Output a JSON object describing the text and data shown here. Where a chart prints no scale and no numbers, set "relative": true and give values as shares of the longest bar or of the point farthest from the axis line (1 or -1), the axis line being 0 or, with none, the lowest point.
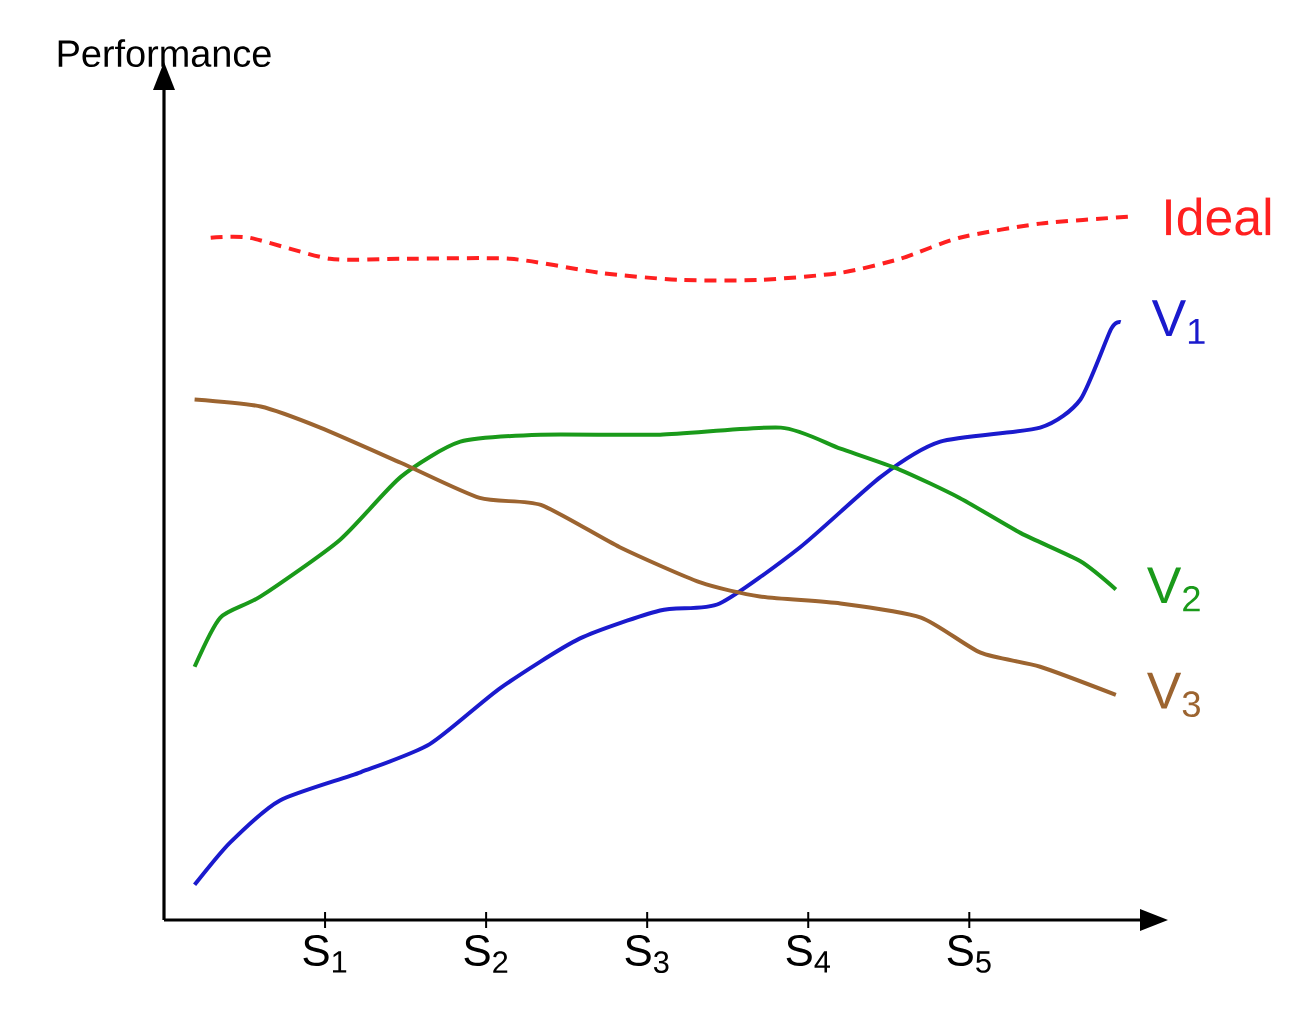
{
  "chart_data": {
    "type": "line",
    "relative": true,
    "ylabel": "Performance",
    "marker": "none",
    "legend": false,
    "grid": false,
    "xlim": [
      0,
      6.06
    ],
    "xticks": [
      {
        "value": 1,
        "label": "S$_{1}$"
      },
      {
        "value": 2,
        "label": "S$_{2}$"
      },
      {
        "value": 3,
        "label": "S$_{3}$"
      },
      {
        "value": 4,
        "label": "S$_{4}$"
      },
      {
        "value": 5,
        "label": "S$_{5}$"
      }
    ],
    "series": [
      {
        "name": "Ideal",
        "color": "#ff2020",
        "line_style": "dashed",
        "x": [
          0.29,
          0.53,
          1.03,
          1.47,
          2.15,
          2.71,
          3.2,
          3.7,
          4.2,
          4.57,
          4.94,
          5.44,
          6.0
        ],
        "values": [
          0.97,
          0.97,
          0.94,
          0.94,
          0.94,
          0.92,
          0.91,
          0.91,
          0.92,
          0.94,
          0.97,
          0.99,
          1
        ]
      },
      {
        "name": "V$_{1}$",
        "color": "#1a1acd",
        "line_style": "solid",
        "x": [
          0.19,
          0.41,
          0.72,
          1.22,
          1.65,
          2.09,
          2.58,
          3.08,
          3.45,
          3.95,
          4.45,
          4.82,
          5.44,
          5.69,
          5.88,
          5.94
        ],
        "values": [
          0.05,
          0.11,
          0.17,
          0.21,
          0.25,
          0.33,
          0.4,
          0.44,
          0.45,
          0.53,
          0.63,
          0.68,
          0.7,
          0.74,
          0.84,
          0.85
        ]
      },
      {
        "name": "V$_{2}$",
        "color": "#1a9a1a",
        "line_style": "solid",
        "x": [
          0.19,
          0.35,
          0.6,
          1.09,
          1.47,
          1.84,
          2.34,
          3.08,
          3.83,
          4.2,
          4.57,
          4.94,
          5.32,
          5.69,
          5.91
        ],
        "values": [
          0.36,
          0.43,
          0.46,
          0.54,
          0.63,
          0.68,
          0.69,
          0.69,
          0.7,
          0.67,
          0.64,
          0.6,
          0.55,
          0.51,
          0.47
        ]
      },
      {
        "name": "V$_{3}$",
        "color": "#9c6430",
        "line_style": "solid",
        "x": [
          0.19,
          0.6,
          0.97,
          1.47,
          1.96,
          2.34,
          2.83,
          3.33,
          3.7,
          4.2,
          4.7,
          5.07,
          5.44,
          5.91
        ],
        "values": [
          0.74,
          0.73,
          0.7,
          0.65,
          0.6,
          0.59,
          0.53,
          0.48,
          0.46,
          0.45,
          0.43,
          0.38,
          0.36,
          0.32
        ]
      }
    ]
  }
}
